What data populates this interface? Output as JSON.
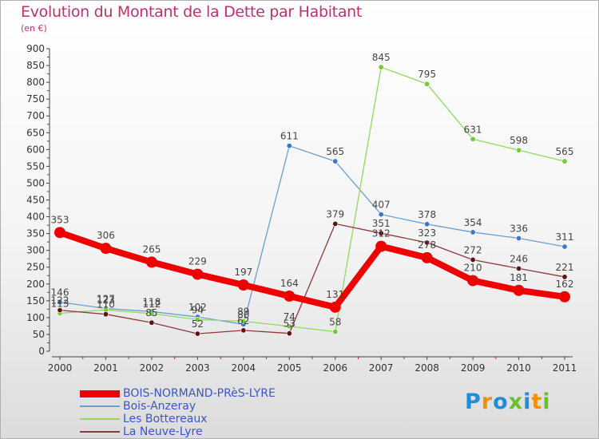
{
  "title": "Evolution du Montant de la Dette par Habitant",
  "unit": "(en €)",
  "brand": {
    "text": "Proxiti",
    "colors": [
      "#1e8fd6",
      "#f29000",
      "#1e8fd6",
      "#6cbf2c",
      "#1e8fd6",
      "#f29000",
      "#6cbf2c"
    ]
  },
  "chart_data": {
    "type": "line",
    "categories": [
      "2000",
      "2001",
      "2002",
      "2003",
      "2004",
      "2005",
      "2006",
      "2007",
      "2008",
      "2009",
      "2010",
      "2011"
    ],
    "ylim": [
      0,
      900
    ],
    "yticks": [
      0,
      50,
      100,
      150,
      200,
      250,
      300,
      350,
      400,
      450,
      500,
      550,
      600,
      650,
      700,
      750,
      800,
      850,
      900
    ],
    "grid": false,
    "legend_position": "bottom-left",
    "series": [
      {
        "name": "BOIS-NORMAND-PRèS-LYRE",
        "color": "#ee0000",
        "marker": "#ee0000",
        "width": 8,
        "label_color": "#333",
        "values": [
          353,
          306,
          265,
          229,
          197,
          164,
          131,
          312,
          278,
          210,
          181,
          162
        ]
      },
      {
        "name": "Bois-Anzeray",
        "color": "#6a9fd0",
        "marker": "#3f78c0",
        "width": 1.3,
        "label_color": "#333",
        "values": [
          146,
          127,
          118,
          102,
          80,
          611,
          565,
          407,
          378,
          354,
          336,
          311
        ]
      },
      {
        "name": "Les Bottereaux",
        "color": "#8fdc5a",
        "marker": "#78c83c",
        "width": 1.3,
        "label_color": "#333",
        "values": [
          113,
          123,
          112,
          94,
          89,
          74,
          58,
          845,
          795,
          631,
          598,
          565
        ]
      },
      {
        "name": "La Neuve-Lyre",
        "color": "#8b3a3a",
        "marker": "#5a1414",
        "width": 1.3,
        "label_color": "#333",
        "values": [
          122,
          110,
          85,
          52,
          62,
          53,
          379,
          351,
          323,
          272,
          246,
          221
        ]
      }
    ]
  }
}
